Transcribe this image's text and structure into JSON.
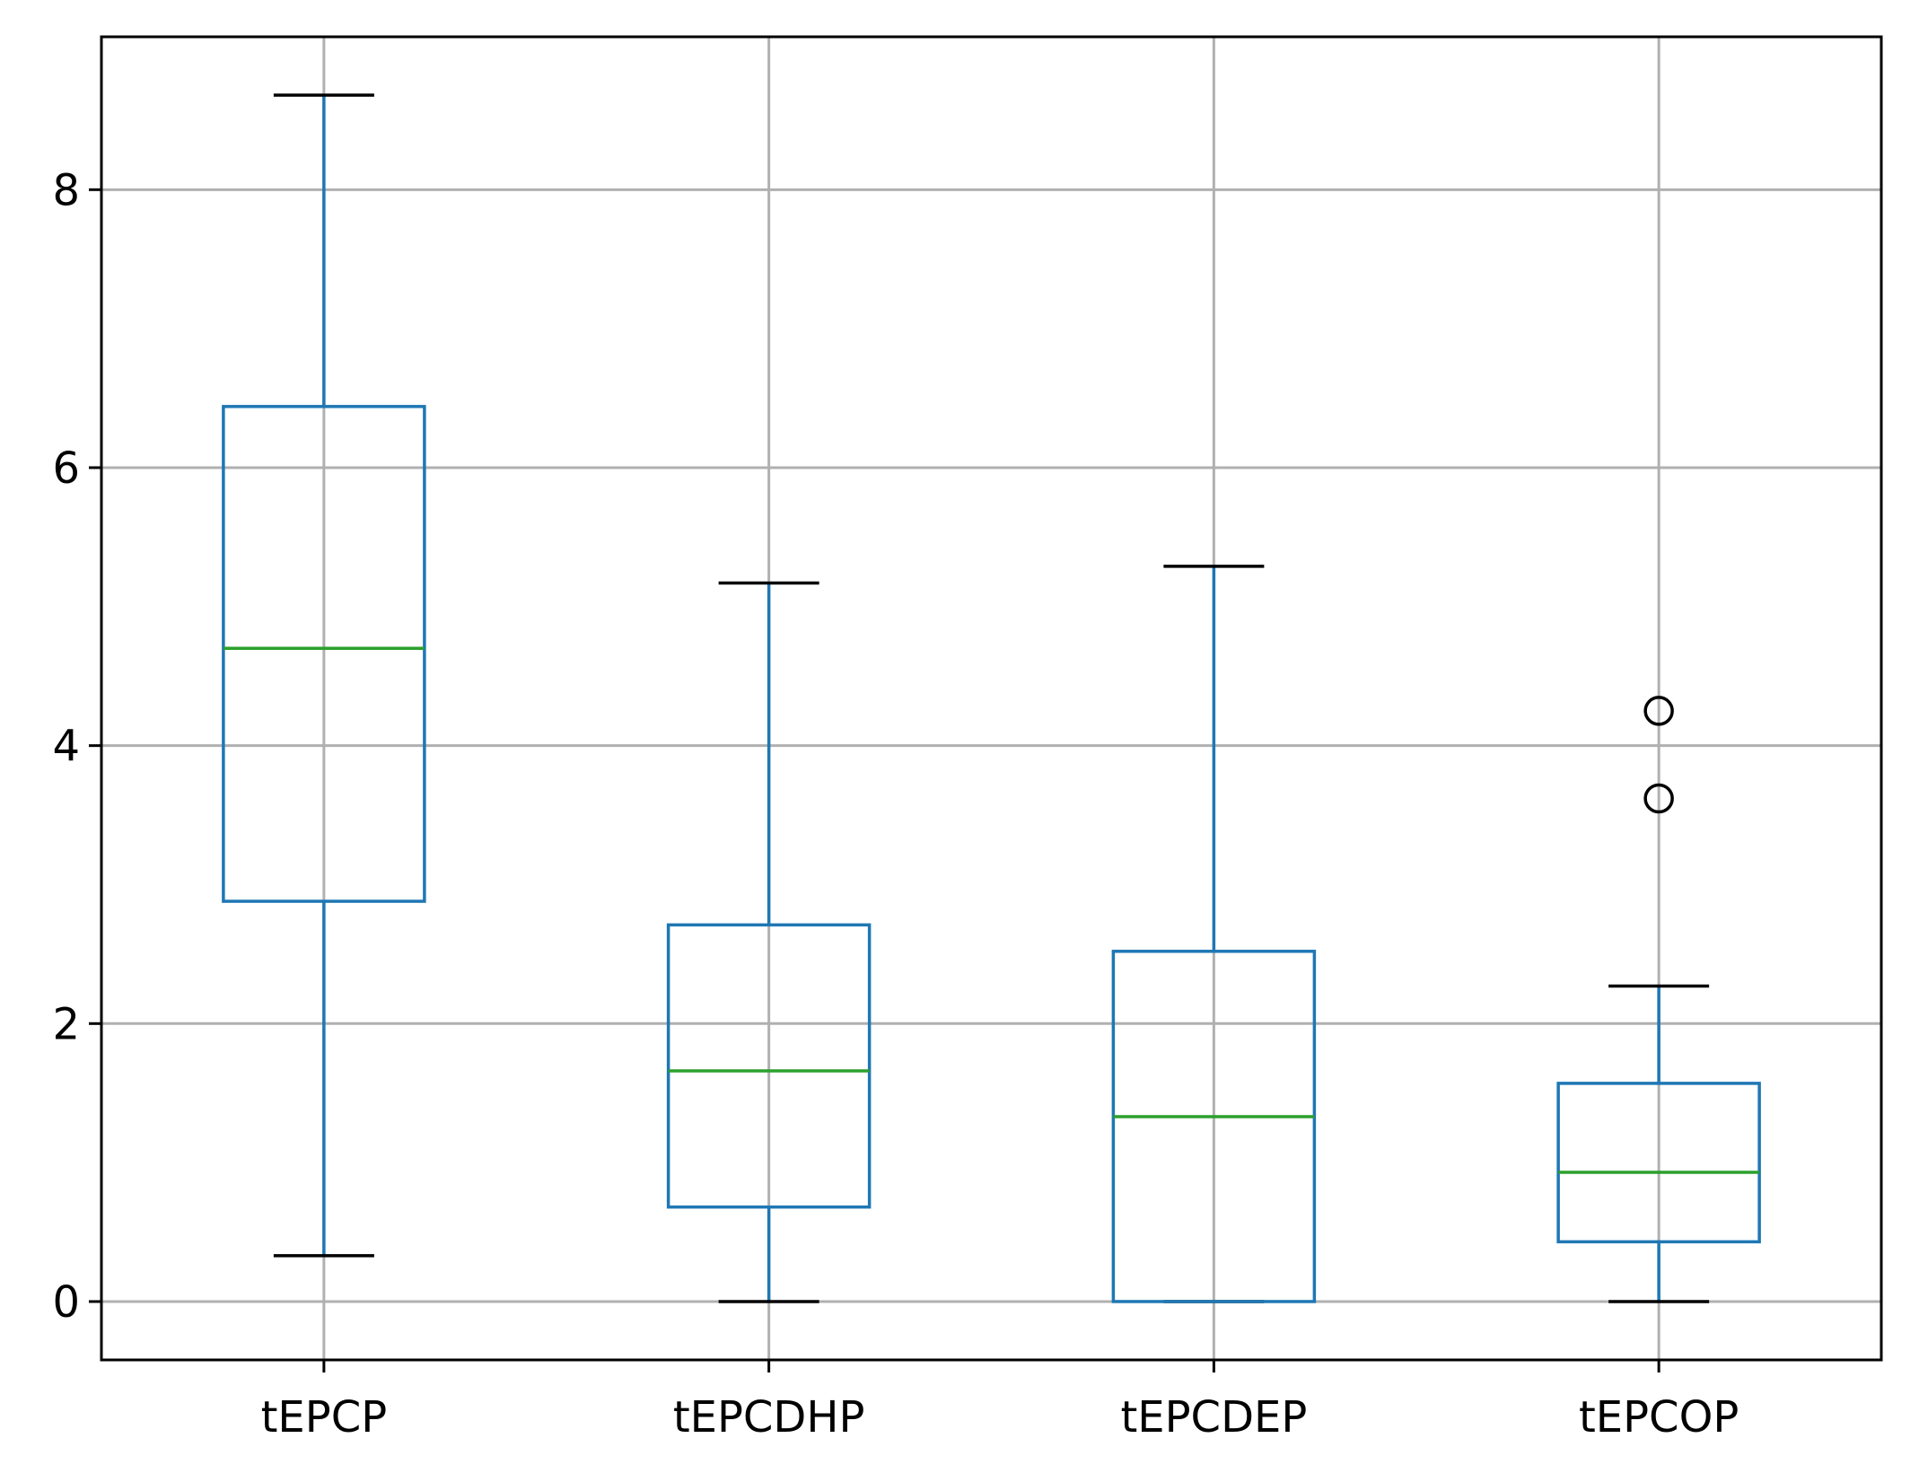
{
  "chart_data": {
    "type": "boxplot",
    "title": "",
    "xlabel": "",
    "ylabel": "",
    "categories": [
      "tEPCP",
      "tEPCDHP",
      "tEPCDEP",
      "tEPCOP"
    ],
    "ylim": [
      -0.42,
      9.1
    ],
    "yticks": [
      0,
      2,
      4,
      6,
      8
    ],
    "grid": true,
    "boxes": [
      {
        "label": "tEPCP",
        "whisker_low": 0.33,
        "q1": 2.88,
        "median": 4.7,
        "q3": 6.44,
        "whisker_high": 8.68,
        "outliers": []
      },
      {
        "label": "tEPCDHP",
        "whisker_low": 0.0,
        "q1": 0.68,
        "median": 1.66,
        "q3": 2.71,
        "whisker_high": 5.17,
        "outliers": []
      },
      {
        "label": "tEPCDEP",
        "whisker_low": 0.0,
        "q1": 0.0,
        "median": 1.33,
        "q3": 2.52,
        "whisker_high": 5.29,
        "outliers": []
      },
      {
        "label": "tEPCOP",
        "whisker_low": 0.0,
        "q1": 0.43,
        "median": 0.93,
        "q3": 1.57,
        "whisker_high": 2.27,
        "outliers": [
          3.62,
          4.25
        ]
      }
    ],
    "colors": {
      "box": "#1f77b4",
      "median": "#2ca02c",
      "cap": "#000000",
      "grid": "#b0b0b0",
      "outlier": "#000000"
    }
  }
}
